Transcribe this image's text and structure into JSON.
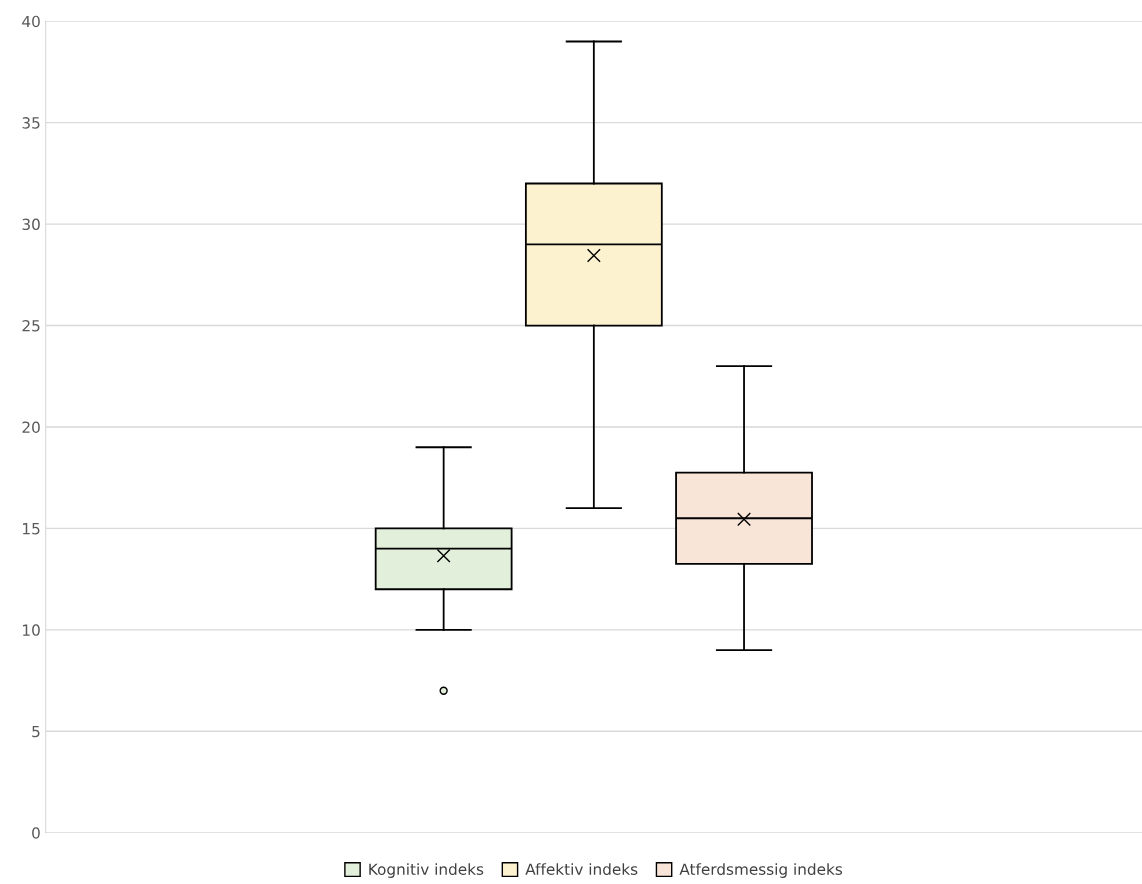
{
  "chart_data": {
    "type": "box",
    "categories": [
      null
    ],
    "series": [
      {
        "name": "Kognitiv indeks",
        "color": "#e2efda",
        "boxes": [
          {
            "low": 10,
            "q1": 12,
            "median": 14,
            "q3": 15,
            "high": 19,
            "mean": 13.65,
            "outliers": [
              7
            ]
          }
        ]
      },
      {
        "name": "Affektiv indeks",
        "color": "#fdf2d0",
        "boxes": [
          {
            "low": 16,
            "q1": 25,
            "median": 29,
            "q3": 32,
            "high": 39,
            "mean": 28.45
          }
        ]
      },
      {
        "name": "Atferdsmessig indeks",
        "color": "#f9e5d8",
        "boxes": [
          {
            "low": 9,
            "q1": 13.25,
            "median": 15.5,
            "q3": 17.75,
            "high": 23,
            "mean": 15.45
          }
        ]
      }
    ],
    "ylim": [
      0,
      40
    ],
    "yticks": [
      0,
      5,
      10,
      15,
      20,
      25,
      30,
      35,
      40
    ],
    "grid": "y",
    "legend": "bottom"
  }
}
